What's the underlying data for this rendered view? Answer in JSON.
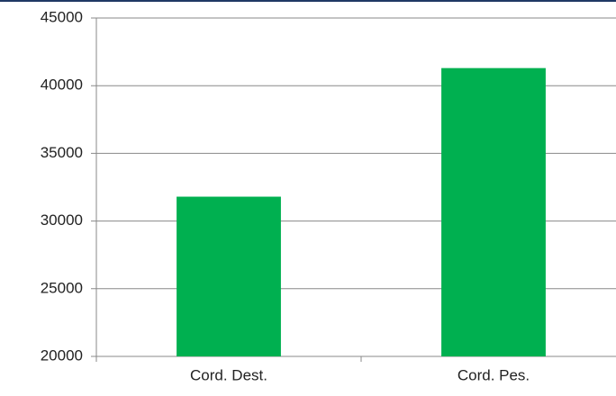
{
  "chart_data": {
    "type": "bar",
    "categories": [
      "Cord. Dest.",
      "Cord. Pes."
    ],
    "values": [
      31800,
      41300
    ],
    "color": "#00b050",
    "ylim": [
      20000,
      45000
    ],
    "yticks": [
      20000,
      25000,
      30000,
      35000,
      40000,
      45000
    ],
    "grid": true
  }
}
